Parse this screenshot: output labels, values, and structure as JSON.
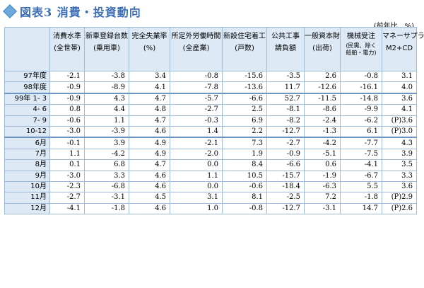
{
  "title": "図表3 消費・投資動向",
  "unit_note": "(前年比、%)",
  "columns": [
    {
      "l1": "消費水準",
      "l2": "(全世帯)"
    },
    {
      "l1": "新車登録台数",
      "l2": "(乗用車)"
    },
    {
      "l1": "完全失業率",
      "l2": "(%)"
    },
    {
      "l1": "所定外労働時間",
      "l2": "(全産業)"
    },
    {
      "l1": "新設住宅着工",
      "l2": "(戸数)"
    },
    {
      "l1": "公共工事",
      "l2": "請負額"
    },
    {
      "l1": "一般資本財",
      "l2": "(出荷)"
    },
    {
      "l1": "機械受注",
      "l2": "(民需、除く",
      "l3": "船舶・電力)"
    },
    {
      "l1": "マネーサプライ",
      "l2": "M2+CD"
    }
  ],
  "rows": [
    {
      "label": "97年度",
      "values": [
        "-2.1",
        "-3.8",
        "3.4",
        "-0.8",
        "-15.6",
        "-3.5",
        "2.6",
        "-0.8",
        "3.1"
      ]
    },
    {
      "label": "98年度",
      "values": [
        "-0.9",
        "-8.9",
        "4.1",
        "-7.8",
        "-13.6",
        "11.7",
        "-12.6",
        "-16.1",
        "4.0"
      ]
    },
    {
      "label": "99年 1- 3",
      "values": [
        "-0.9",
        "4.3",
        "4.7",
        "-5.7",
        "-6.6",
        "52.7",
        "-11.5",
        "-14.8",
        "3.6"
      ]
    },
    {
      "label": "4- 6",
      "values": [
        "0.8",
        "4.4",
        "4.8",
        "-2.7",
        "2.5",
        "-8.1",
        "-8.6",
        "-9.9",
        "4.1"
      ]
    },
    {
      "label": "7- 9",
      "values": [
        "-0.6",
        "1.1",
        "4.7",
        "-0.3",
        "6.9",
        "-8.2",
        "-2.4",
        "-6.2",
        "(P)3.6"
      ]
    },
    {
      "label": "10-12",
      "values": [
        "-3.0",
        "-3.9",
        "4.6",
        "1.4",
        "2.2",
        "-12.7",
        "-1.3",
        "6.1",
        "(P)3.0"
      ]
    },
    {
      "label": "6月",
      "values": [
        "-0.1",
        "3.9",
        "4.9",
        "-2.1",
        "7.3",
        "-2.7",
        "-4.2",
        "-7.7",
        "4.3"
      ]
    },
    {
      "label": "7月",
      "values": [
        "1.1",
        "-4.2",
        "4.9",
        "-2.0",
        "1.9",
        "-0.9",
        "-5.1",
        "-7.5",
        "3.9"
      ]
    },
    {
      "label": "8月",
      "values": [
        "0.1",
        "6.8",
        "4.7",
        "0.0",
        "8.4",
        "-6.6",
        "0.6",
        "-4.1",
        "3.5"
      ]
    },
    {
      "label": "9月",
      "values": [
        "-3.0",
        "3.3",
        "4.6",
        "1.1",
        "10.5",
        "-15.7",
        "-1.9",
        "-6.7",
        "3.3"
      ]
    },
    {
      "label": "10月",
      "values": [
        "-2.3",
        "-6.8",
        "4.6",
        "0.0",
        "-0.6",
        "-18.4",
        "-6.3",
        "5.5",
        "3.6"
      ]
    },
    {
      "label": "11月",
      "values": [
        "-2.7",
        "-3.1",
        "4.5",
        "3.1",
        "8.1",
        "-2.5",
        "7.2",
        "-1.8",
        "(P)2.9"
      ]
    },
    {
      "label": "12月",
      "values": [
        "-4.1",
        "-1.8",
        "4.6",
        "1.0",
        "-0.8",
        "-12.7",
        "-3.1",
        "14.7",
        "(P)2.6"
      ]
    }
  ]
}
